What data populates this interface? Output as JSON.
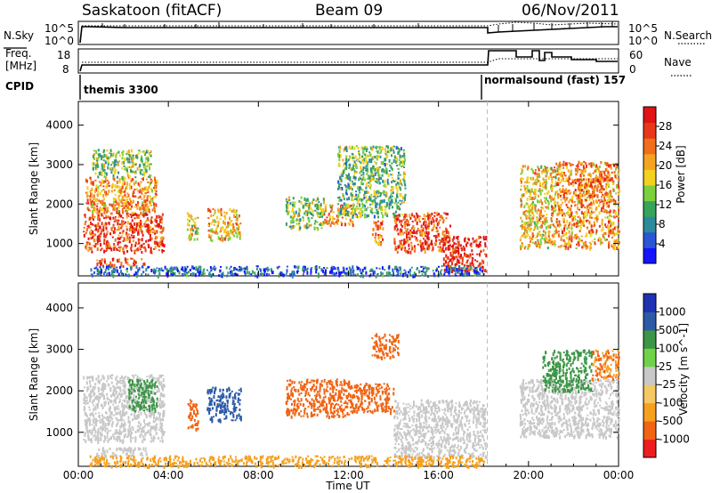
{
  "header": {
    "station": "Saskatoon (fitACF)",
    "beam": "Beam 09",
    "date": "06/Nov/2011"
  },
  "noise_panel": {
    "left_label": "N.Sky",
    "right_label": "N.Search",
    "ticks_left": [
      "10^5",
      "10^0"
    ],
    "ticks_right": [
      "10^5",
      "10^0"
    ]
  },
  "freq_panel": {
    "left_label_line1": "Freq.",
    "left_label_line2": "[MHz]",
    "ticks_left": [
      "18",
      "8"
    ],
    "right_label": "Nave",
    "ticks_right": [
      "60",
      "0"
    ]
  },
  "cpid_panel": {
    "label": "CPID",
    "segments": [
      {
        "start": "00:00",
        "end": "18:10",
        "text": "themis 3300"
      },
      {
        "start": "18:10",
        "end": "24:00",
        "text": "normalsound (fast) 157"
      }
    ]
  },
  "x_axis": {
    "label": "Time UT",
    "ticks": [
      "00:00",
      "04:00",
      "08:00",
      "12:00",
      "16:00",
      "20:00",
      "00:00"
    ],
    "range_hours": [
      0,
      24
    ]
  },
  "colors": {
    "power": [
      "#1414ff",
      "#2a55d6",
      "#2e8a9a",
      "#38a35a",
      "#7ccf3e",
      "#f2d21e",
      "#f5a322",
      "#f06e1c",
      "#e8381a",
      "#e01414"
    ],
    "velocity": [
      "#ee1e1e",
      "#f06414",
      "#f5a01e",
      "#f5c864",
      "#c8c8c8",
      "#6fd34a",
      "#3c9646",
      "#2d5aa6",
      "#1e32b4"
    ]
  },
  "chart_data": [
    {
      "type": "heatmap",
      "title": "Power",
      "ylabel": "Slant Range [km]",
      "xlabel": "",
      "ylim": [
        180,
        4600
      ],
      "yticks": [
        "1000",
        "2000",
        "3000",
        "4000"
      ],
      "colorbar": {
        "label": "Power [dB]",
        "ticks": [
          "4",
          "8",
          "12",
          "16",
          "20",
          "24",
          "28"
        ],
        "range": [
          0,
          32
        ]
      },
      "regions": [
        {
          "x": [
            0.2,
            3.8
          ],
          "y": [
            800,
            1800
          ],
          "value": 27
        },
        {
          "x": [
            0.3,
            3.5
          ],
          "y": [
            1800,
            2700
          ],
          "value": 22
        },
        {
          "x": [
            0.8,
            3.0
          ],
          "y": [
            450,
            650
          ],
          "value": 26
        },
        {
          "x": [
            0.6,
            3.2
          ],
          "y": [
            2700,
            3400
          ],
          "value": 14
        },
        {
          "x": [
            4.8,
            5.3
          ],
          "y": [
            1100,
            1800
          ],
          "value": 18
        },
        {
          "x": [
            5.7,
            7.2
          ],
          "y": [
            1100,
            1900
          ],
          "value": 20
        },
        {
          "x": [
            9.2,
            10.9
          ],
          "y": [
            1400,
            2200
          ],
          "value": 14
        },
        {
          "x": [
            10.8,
            12.2
          ],
          "y": [
            1500,
            2000
          ],
          "value": 22
        },
        {
          "x": [
            11.5,
            14.5
          ],
          "y": [
            1700,
            3500
          ],
          "value": 13
        },
        {
          "x": [
            13.0,
            13.5
          ],
          "y": [
            1000,
            1600
          ],
          "value": 24
        },
        {
          "x": [
            14.0,
            16.5
          ],
          "y": [
            800,
            1800
          ],
          "value": 27
        },
        {
          "x": [
            16.2,
            18.1
          ],
          "y": [
            300,
            1200
          ],
          "value": 29
        },
        {
          "x": [
            19.6,
            21.2
          ],
          "y": [
            900,
            3000
          ],
          "value": 19
        },
        {
          "x": [
            21.2,
            24.0
          ],
          "y": [
            900,
            3100
          ],
          "value": 22
        },
        {
          "x": [
            22.0,
            23.6
          ],
          "y": [
            2200,
            2700
          ],
          "value": 25
        },
        {
          "x": [
            0.5,
            18.0
          ],
          "y": [
            200,
            450
          ],
          "value": 6
        }
      ]
    },
    {
      "type": "heatmap",
      "title": "Velocity",
      "ylabel": "Slant Range [km]",
      "xlabel": "Time UT",
      "ylim": [
        180,
        4600
      ],
      "yticks": [
        "1000",
        "2000",
        "3000",
        "4000"
      ],
      "colorbar": {
        "label": "Velocity [m s^-1]",
        "ticks": [
          "1000",
          "500",
          "100",
          "25",
          "-25",
          "-100",
          "-500",
          "-1000"
        ]
      },
      "regions": [
        {
          "x": [
            0.2,
            3.8
          ],
          "y": [
            800,
            2400
          ],
          "value": 0
        },
        {
          "x": [
            2.2,
            3.5
          ],
          "y": [
            1500,
            2300
          ],
          "value": 120
        },
        {
          "x": [
            0.8,
            3.0
          ],
          "y": [
            450,
            650
          ],
          "value": 0
        },
        {
          "x": [
            4.8,
            5.3
          ],
          "y": [
            1100,
            1800
          ],
          "value": -120
        },
        {
          "x": [
            5.7,
            7.2
          ],
          "y": [
            1300,
            2100
          ],
          "value": 800
        },
        {
          "x": [
            9.2,
            12.0
          ],
          "y": [
            1400,
            2300
          ],
          "value": -150
        },
        {
          "x": [
            12.0,
            14.0
          ],
          "y": [
            1500,
            2200
          ],
          "value": -200
        },
        {
          "x": [
            13.0,
            14.2
          ],
          "y": [
            2800,
            3400
          ],
          "value": -300
        },
        {
          "x": [
            14.0,
            18.1
          ],
          "y": [
            400,
            1800
          ],
          "value": 0
        },
        {
          "x": [
            19.6,
            24.0
          ],
          "y": [
            900,
            2300
          ],
          "value": 0
        },
        {
          "x": [
            20.6,
            22.8
          ],
          "y": [
            2000,
            3000
          ],
          "value": 300
        },
        {
          "x": [
            22.8,
            24.0
          ],
          "y": [
            2300,
            3000
          ],
          "value": -100
        },
        {
          "x": [
            0.5,
            18.0
          ],
          "y": [
            200,
            450
          ],
          "value": -60
        }
      ]
    }
  ]
}
